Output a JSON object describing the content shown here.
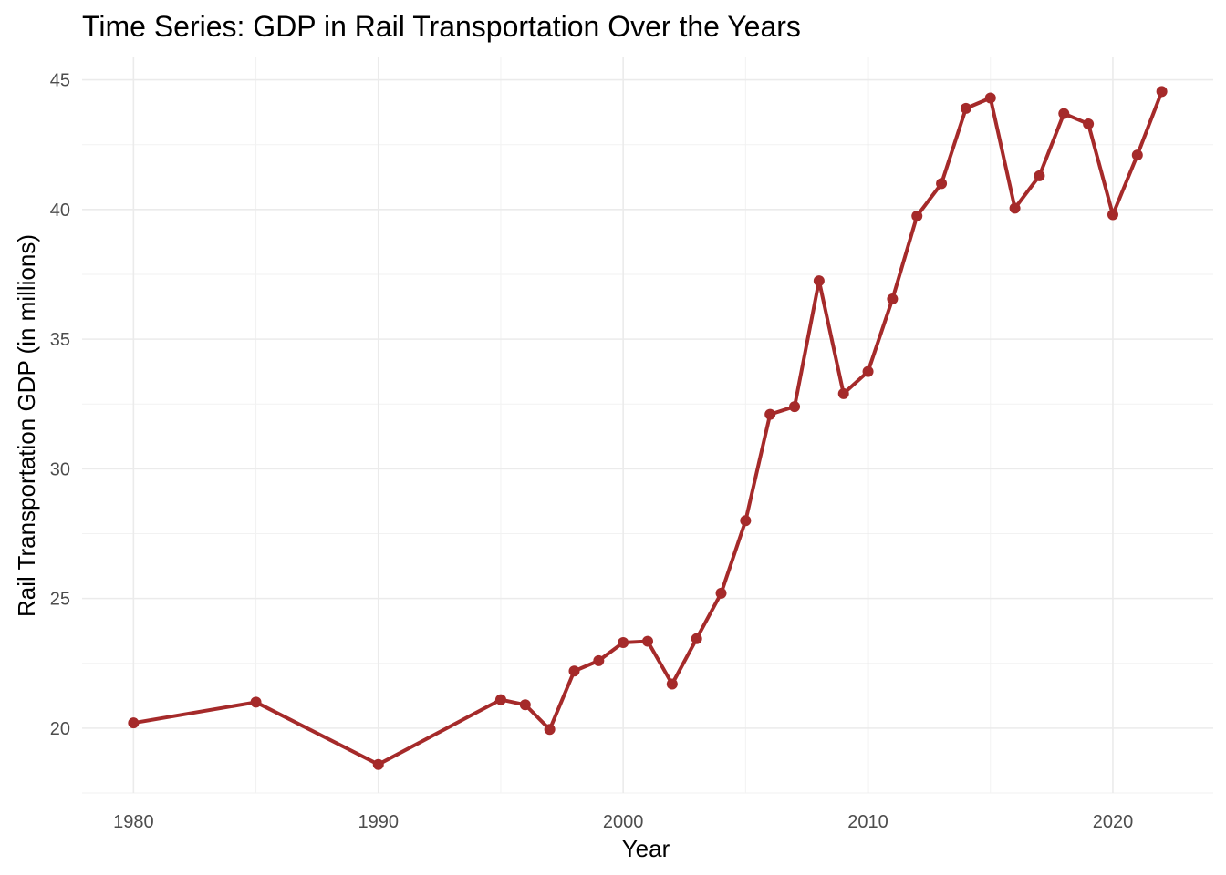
{
  "chart_data": {
    "type": "line",
    "title": "Time Series: GDP in Rail Transportation Over the Years",
    "xlabel": "Year",
    "ylabel": "Rail Transportation GDP (in millions)",
    "xlim": [
      1977.9,
      2024.1
    ],
    "ylim": [
      17.5,
      45.9
    ],
    "x_ticks": [
      1980,
      1990,
      2000,
      2010,
      2020
    ],
    "y_ticks": [
      20,
      25,
      30,
      35,
      40,
      45
    ],
    "grid": true,
    "legend": "none",
    "line_color": "#A52A2A",
    "series": [
      {
        "x": [
          1980,
          1985,
          1990,
          1995,
          1996,
          1997,
          1998,
          1999,
          2000,
          2001,
          2002,
          2003,
          2004,
          2005,
          2006,
          2007,
          2008,
          2009,
          2010,
          2011,
          2012,
          2013,
          2014,
          2015,
          2016,
          2017,
          2018,
          2019,
          2020,
          2021,
          2022
        ],
        "y": [
          20.2,
          21.0,
          18.6,
          21.1,
          20.9,
          19.95,
          22.2,
          22.6,
          23.3,
          23.35,
          21.7,
          23.45,
          25.2,
          28.0,
          32.1,
          32.4,
          37.25,
          32.9,
          33.75,
          36.55,
          39.75,
          41.0,
          43.9,
          44.3,
          40.05,
          41.3,
          43.7,
          43.3,
          39.8,
          42.1,
          44.55
        ]
      }
    ]
  }
}
